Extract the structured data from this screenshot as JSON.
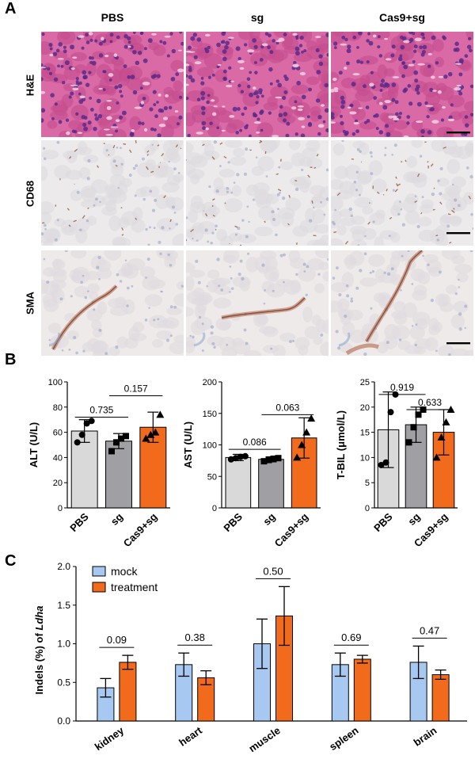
{
  "panelA": {
    "letter": "A",
    "columns": [
      "PBS",
      "sg",
      "Cas9+sg"
    ],
    "rows": [
      {
        "label": "H&E",
        "stain": "he",
        "colors": {
          "bg": "#d96aa6",
          "cell": "#c44c8e",
          "nucleus": "#5a2a8a"
        }
      },
      {
        "label": "CD68",
        "stain": "cd68",
        "colors": {
          "bg": "#eceaea",
          "cell": "#dedbe0",
          "nucleus": "#9aa4c8"
        }
      },
      {
        "label": "SMA",
        "stain": "sma",
        "colors": {
          "bg": "#edeae9",
          "cell": "#dfdbe0",
          "nucleus": "#9aa4c8"
        }
      }
    ]
  },
  "panelB": {
    "letter": "B",
    "categories": [
      "PBS",
      "sg",
      "Cas9+sg"
    ],
    "colors": {
      "PBS": "#d9d9d9",
      "sg": "#a0a0a4",
      "Cas9+sg": "#f26b1d"
    },
    "chart_data": [
      {
        "type": "bar",
        "ylabel": "ALT (U/L)",
        "ylim": [
          0,
          100
        ],
        "yticks": [
          0,
          20,
          40,
          60,
          80,
          100
        ],
        "categories": [
          "PBS",
          "sg",
          "Cas9+sg"
        ],
        "values": [
          61,
          53,
          64
        ],
        "errors": [
          9,
          6,
          12
        ],
        "points": [
          [
            52,
            58,
            67,
            69
          ],
          [
            45,
            52,
            55,
            57
          ],
          [
            55,
            58,
            60,
            74
          ]
        ],
        "comparisons": [
          {
            "from": 0,
            "to": 1,
            "label": "0.735",
            "y": 72
          },
          {
            "from": 1,
            "to": 2,
            "label": "0.157",
            "y": 89
          }
        ]
      },
      {
        "type": "bar",
        "ylabel": "AST (U/L)",
        "ylim": [
          0,
          200
        ],
        "yticks": [
          0,
          50,
          100,
          150,
          200
        ],
        "categories": [
          "PBS",
          "sg",
          "Cas9+sg"
        ],
        "values": [
          80,
          77,
          111
        ],
        "errors": [
          5,
          4,
          32
        ],
        "points": [
          [
            77,
            79,
            81,
            82
          ],
          [
            74,
            76,
            78,
            79
          ],
          [
            80,
            100,
            120,
            142
          ]
        ],
        "comparisons": [
          {
            "from": 0,
            "to": 1,
            "label": "0.086",
            "y": 93
          },
          {
            "from": 1,
            "to": 2,
            "label": "0.063",
            "y": 148
          }
        ]
      },
      {
        "type": "bar",
        "ylabel": "T-BIL (μmol/L)",
        "ylim": [
          0,
          25
        ],
        "yticks": [
          0,
          5,
          10,
          15,
          20,
          25
        ],
        "categories": [
          "PBS",
          "sg",
          "Cas9+sg"
        ],
        "values": [
          15.5,
          16.5,
          15
        ],
        "errors": [
          7.5,
          3.5,
          4.5
        ],
        "points": [
          [
            8.5,
            9,
            19,
            22.5
          ],
          [
            13,
            16,
            18.5,
            19.5
          ],
          [
            10,
            14,
            17,
            19.5
          ]
        ],
        "comparisons": [
          {
            "from": 0,
            "to": 1,
            "label": "0.919",
            "y": 22.5
          },
          {
            "from": 1,
            "to": 2,
            "label": "0.633",
            "y": 19.5
          }
        ]
      }
    ]
  },
  "panelC": {
    "letter": "C",
    "chart_data": {
      "type": "bar",
      "ylabel_prefix": "Indels (%) of ",
      "ylabel_italic": "Ldha",
      "ylim": [
        0,
        2.0
      ],
      "yticks": [
        "0.0",
        "0.5",
        "1.0",
        "1.5",
        "2.0"
      ],
      "categories": [
        "kidney",
        "heart",
        "muscle",
        "spleen",
        "brain"
      ],
      "series": [
        {
          "name": "mock",
          "color": "#a7c8f0",
          "values": [
            0.43,
            0.73,
            1.0,
            0.73,
            0.76
          ],
          "errors": [
            0.12,
            0.15,
            0.32,
            0.15,
            0.21
          ]
        },
        {
          "name": "treatment",
          "color": "#f26b1d",
          "values": [
            0.76,
            0.56,
            1.36,
            0.8,
            0.6
          ],
          "errors": [
            0.09,
            0.09,
            0.38,
            0.05,
            0.06
          ]
        }
      ],
      "pvalues": [
        "0.09",
        "0.38",
        "0.50",
        "0.69",
        "0.47"
      ],
      "legend": "top-left"
    }
  }
}
